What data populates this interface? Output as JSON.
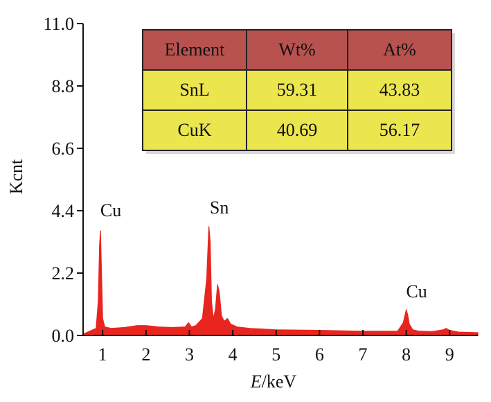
{
  "chart_data": {
    "type": "line",
    "xlabel": "E/keV",
    "ylabel": "Kcnt",
    "xlim": [
      0.55,
      9.65
    ],
    "ylim": [
      0,
      11.0
    ],
    "x_ticks": [
      "1",
      "2",
      "3",
      "4",
      "5",
      "6",
      "7",
      "8",
      "9"
    ],
    "y_ticks": [
      "0.0",
      "2.2",
      "4.4",
      "6.6",
      "8.8",
      "11.0"
    ],
    "grid": false,
    "color": "#e8251f",
    "series": [
      {
        "x": [
          0.55,
          0.7,
          0.85,
          0.9,
          0.93,
          0.95,
          0.97,
          1.0,
          1.05,
          1.2,
          1.5,
          1.8,
          2.0,
          2.3,
          2.6,
          2.9,
          2.98,
          3.05,
          3.15,
          3.3,
          3.4,
          3.45,
          3.48,
          3.51,
          3.55,
          3.6,
          3.65,
          3.69,
          3.74,
          3.8,
          3.88,
          3.95,
          4.1,
          4.4,
          5.0,
          6.0,
          7.0,
          7.8,
          7.93,
          8.0,
          8.03,
          8.07,
          8.15,
          8.3,
          8.6,
          8.85,
          8.92,
          9.0,
          9.2,
          9.65
        ],
        "y": [
          0.05,
          0.15,
          0.25,
          1.2,
          3.2,
          3.7,
          2.5,
          0.6,
          0.3,
          0.25,
          0.28,
          0.35,
          0.35,
          0.3,
          0.28,
          0.3,
          0.45,
          0.3,
          0.35,
          0.6,
          2.0,
          3.85,
          3.3,
          1.2,
          0.6,
          0.9,
          1.8,
          1.5,
          0.7,
          0.5,
          0.6,
          0.4,
          0.3,
          0.25,
          0.2,
          0.18,
          0.15,
          0.15,
          0.45,
          0.9,
          0.75,
          0.4,
          0.2,
          0.15,
          0.14,
          0.2,
          0.25,
          0.18,
          0.12,
          0.1
        ]
      }
    ],
    "annotations": [
      {
        "text": "Cu",
        "x": 0.95,
        "y": 4.2
      },
      {
        "text": "Sn",
        "x": 3.45,
        "y": 4.3
      },
      {
        "text": "Cu",
        "x": 8.0,
        "y": 1.35
      }
    ],
    "table": {
      "headers": [
        "Element",
        "Wt%",
        "At%"
      ],
      "rows": [
        [
          "SnL",
          "59.31",
          "43.83"
        ],
        [
          "CuK",
          "40.69",
          "56.17"
        ]
      ]
    }
  }
}
